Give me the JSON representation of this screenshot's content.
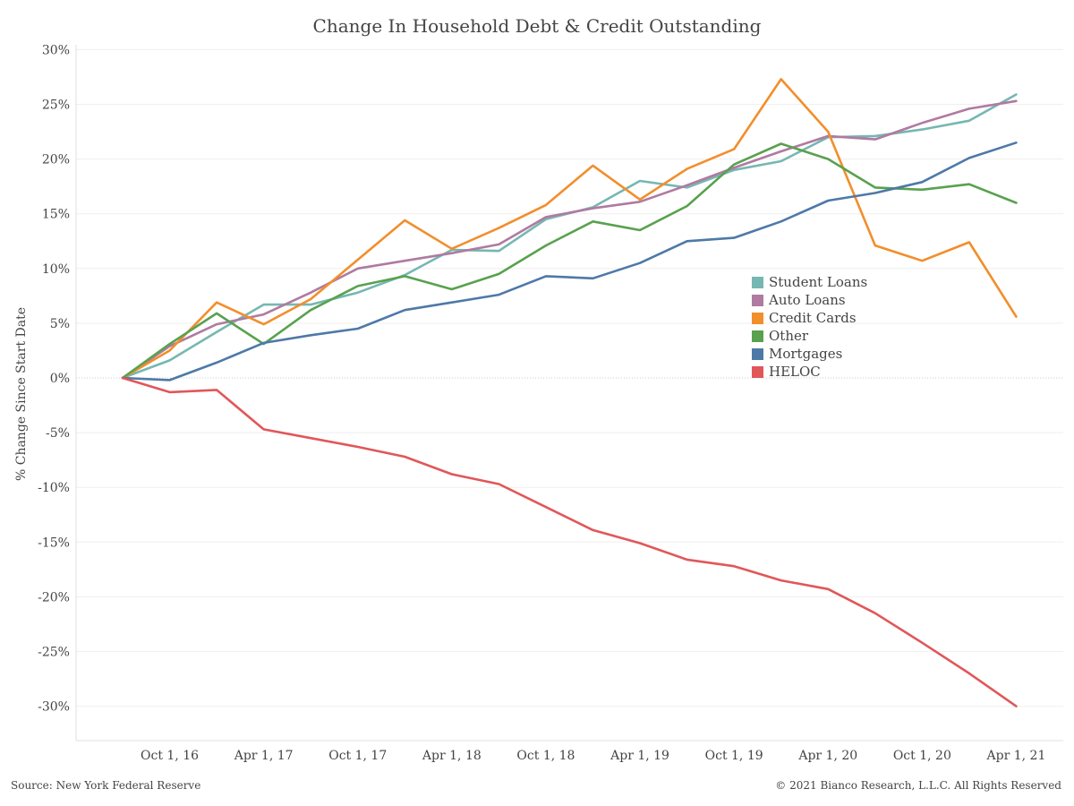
{
  "chart_data": {
    "type": "line",
    "title": "Change In Household Debt & Credit Outstanding",
    "ylabel": "% Change Since Start Date",
    "xlabel": "",
    "x_tick_labels": [
      "Oct 1, 16",
      "Apr 1, 17",
      "Oct 1, 17",
      "Apr 1, 18",
      "Oct 1, 18",
      "Apr 1, 19",
      "Oct 1, 19",
      "Apr 1, 20",
      "Oct 1, 20",
      "Apr 1, 21"
    ],
    "y_tick_labels": [
      "30%",
      "25%",
      "20%",
      "15%",
      "10%",
      "5%",
      "0%",
      "-5%",
      "-10%",
      "-15%",
      "-20%",
      "-25%",
      "-30%"
    ],
    "ylim": [
      -33,
      31
    ],
    "grid": true,
    "legend_position": "right-center",
    "x": [
      "Jul 1, 16",
      "Oct 1, 16",
      "Jan 1, 17",
      "Apr 1, 17",
      "Jul 1, 17",
      "Oct 1, 17",
      "Jan 1, 18",
      "Apr 1, 18",
      "Jul 1, 18",
      "Oct 1, 18",
      "Jan 1, 19",
      "Apr 1, 19",
      "Jul 1, 19",
      "Oct 1, 19",
      "Jan 1, 20",
      "Apr 1, 20",
      "Jul 1, 20",
      "Oct 1, 20",
      "Jan 1, 21",
      "Apr 1, 21"
    ],
    "series": [
      {
        "name": "Student Loans",
        "color": "#76b7b2",
        "values": [
          0,
          1.6,
          4.2,
          6.7,
          6.7,
          7.8,
          9.4,
          11.7,
          11.6,
          14.5,
          15.6,
          18.0,
          17.4,
          19.0,
          19.8,
          22.0,
          22.1,
          22.7,
          23.5,
          25.9
        ]
      },
      {
        "name": "Auto Loans",
        "color": "#b07aa1",
        "values": [
          0,
          2.9,
          4.9,
          5.8,
          7.8,
          10.0,
          10.7,
          11.4,
          12.2,
          14.7,
          15.5,
          16.1,
          17.6,
          19.2,
          20.7,
          22.1,
          21.8,
          23.3,
          24.6,
          25.3
        ]
      },
      {
        "name": "Credit Cards",
        "color": "#f28e2b",
        "values": [
          0,
          2.5,
          6.9,
          4.9,
          7.2,
          10.8,
          14.4,
          11.8,
          13.7,
          15.8,
          19.4,
          16.3,
          19.1,
          20.9,
          27.3,
          22.5,
          12.1,
          10.7,
          12.4,
          5.6
        ]
      },
      {
        "name": "Other",
        "color": "#59a14f",
        "values": [
          0,
          3.1,
          5.9,
          3.1,
          6.2,
          8.4,
          9.3,
          8.1,
          9.5,
          12.1,
          14.3,
          13.5,
          15.7,
          19.5,
          21.4,
          20.0,
          17.4,
          17.2,
          17.7,
          16.0
        ]
      },
      {
        "name": "Mortgages",
        "color": "#4e79a7",
        "values": [
          0,
          -0.2,
          1.4,
          3.2,
          3.9,
          4.5,
          6.2,
          6.9,
          7.6,
          9.3,
          9.1,
          10.5,
          12.5,
          12.8,
          14.3,
          16.2,
          16.9,
          17.9,
          20.1,
          21.5
        ]
      },
      {
        "name": "HELOC",
        "color": "#e15759",
        "values": [
          0,
          -1.3,
          -1.1,
          -4.7,
          -5.5,
          -6.3,
          -7.2,
          -8.8,
          -9.7,
          -11.8,
          -13.9,
          -15.1,
          -16.6,
          -17.2,
          -18.5,
          -19.3,
          -21.5,
          -24.2,
          -27.0,
          -30.0
        ]
      }
    ]
  },
  "footer": {
    "source": "Source: New York Federal Reserve",
    "copyright": "© 2021 Bianco Research, L.L.C. All Rights Reserved"
  }
}
